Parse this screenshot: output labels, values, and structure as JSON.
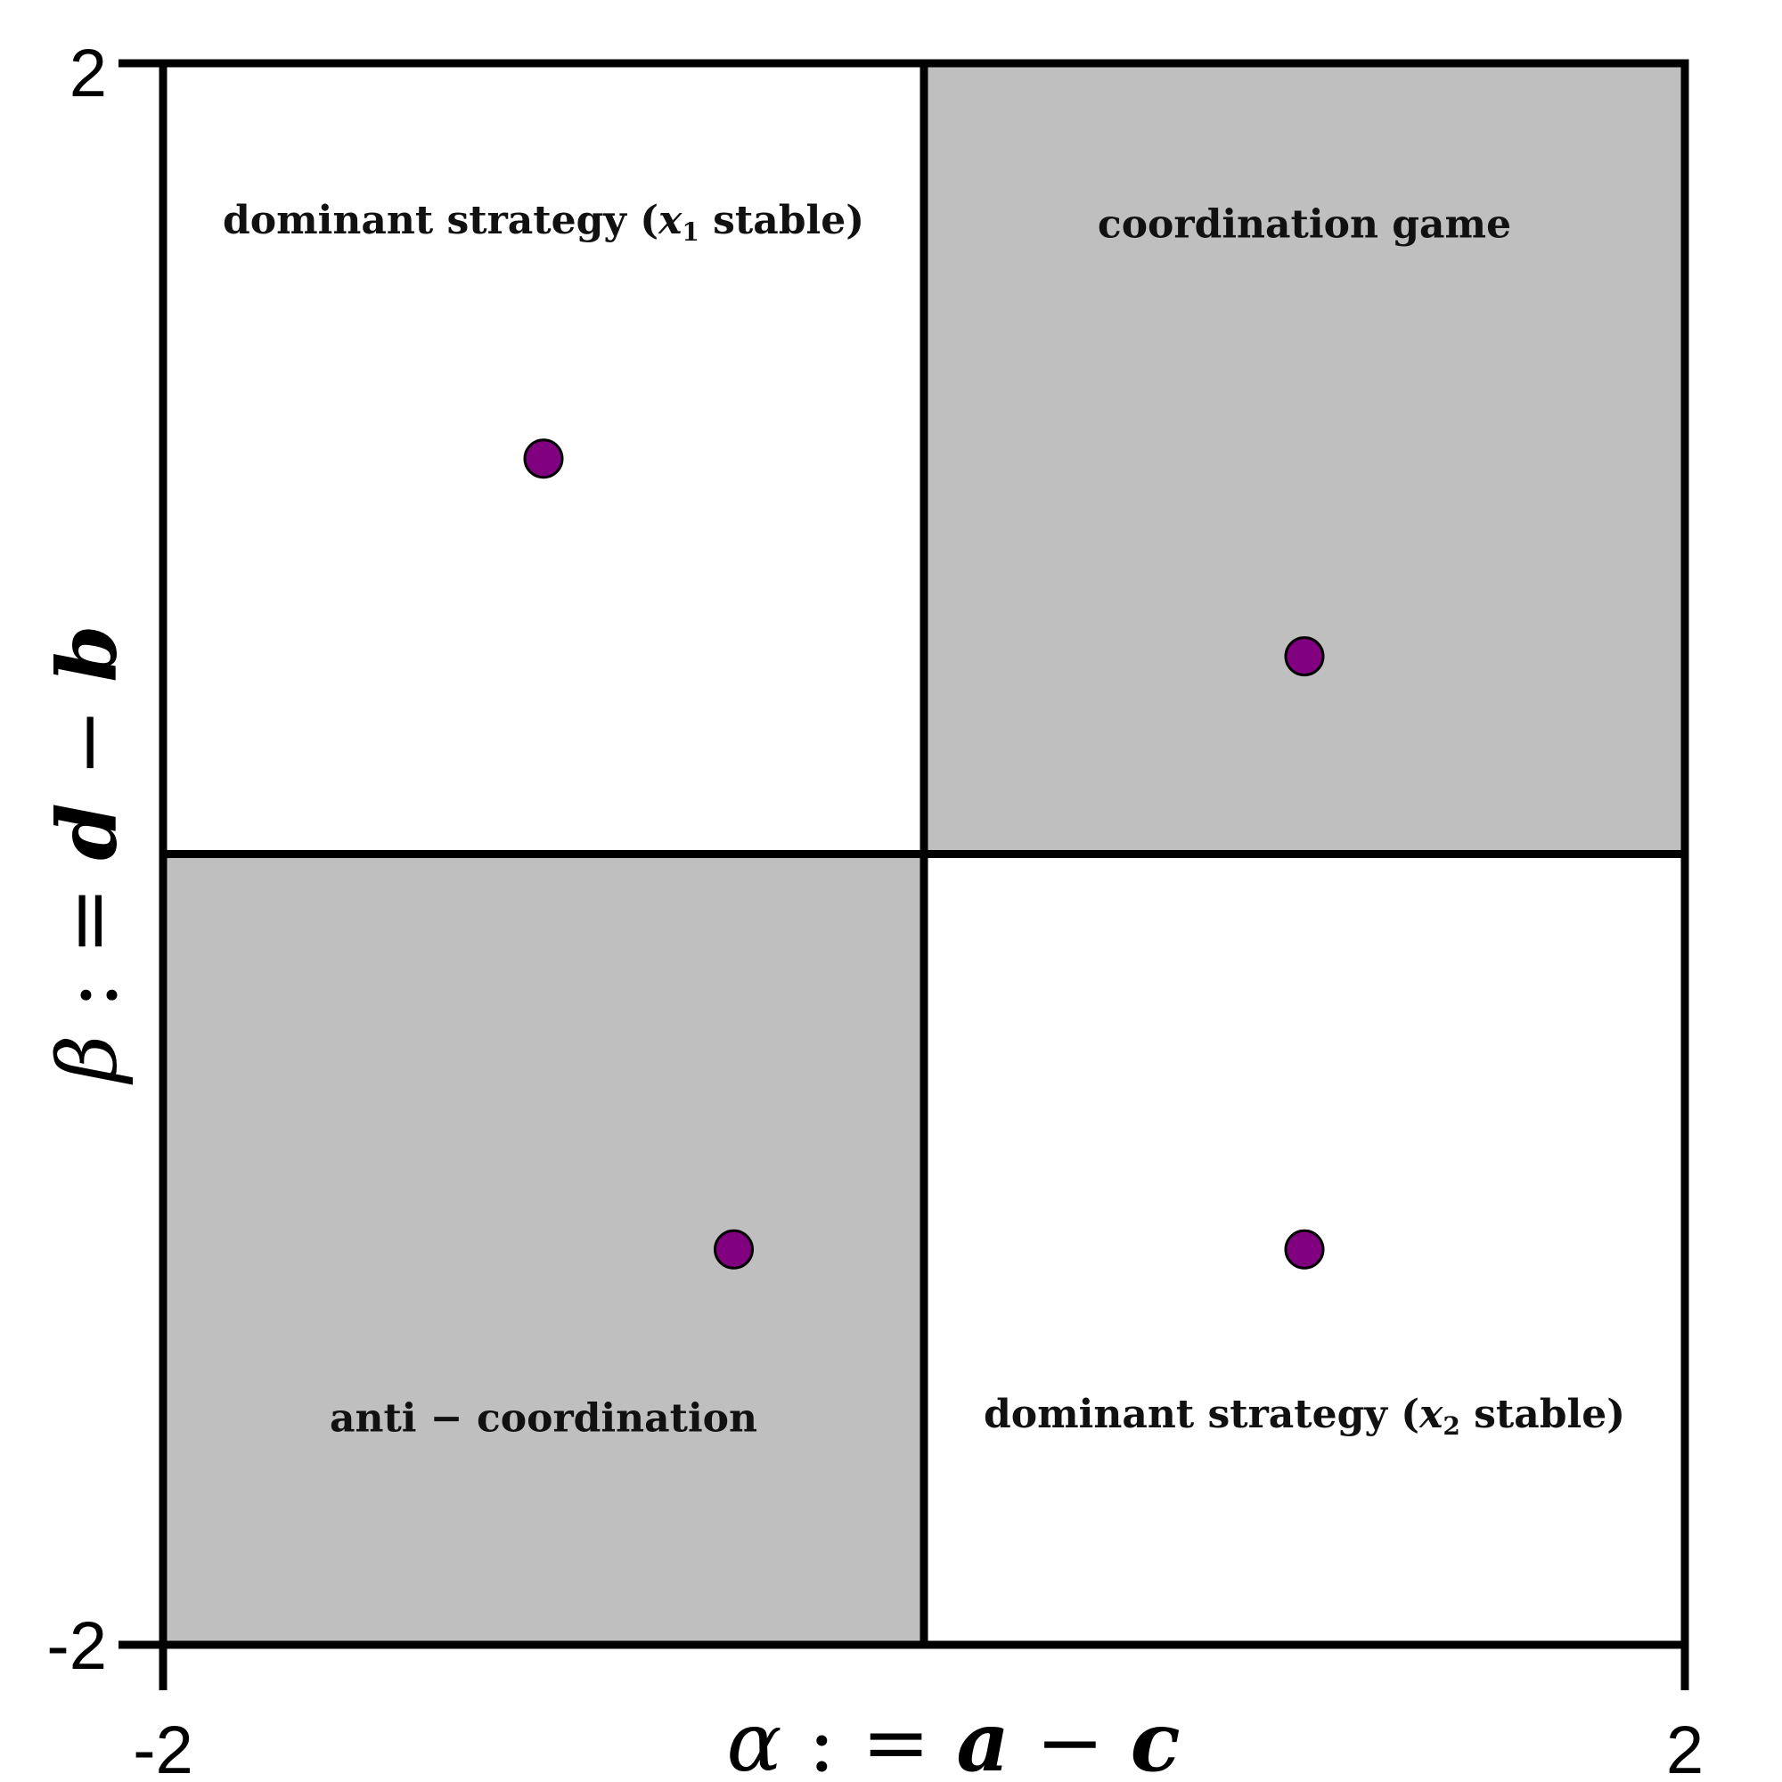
{
  "chart_data": {
    "type": "scatter",
    "xlim": [
      -2,
      2
    ],
    "ylim": [
      -2,
      2
    ],
    "xticks": [
      "-2",
      "2"
    ],
    "yticks": [
      "-2",
      "2"
    ],
    "xlabel": {
      "sym": "α",
      "op": " : = ",
      "v1": "a",
      "minus": " − ",
      "v2": "c"
    },
    "ylabel": {
      "sym": "β",
      "op": " : = ",
      "v1": "d",
      "minus": " − ",
      "v2": "b"
    },
    "regions": [
      {
        "quadrant": "top-left",
        "label_pre": "dominant strategy (",
        "label_var": "x",
        "label_sub": "1",
        "label_post": " stable)",
        "label_x": -1,
        "label_y": 1.57,
        "fill": "#ffffff"
      },
      {
        "quadrant": "top-right",
        "label_pre": "coordination game",
        "label_var": "",
        "label_sub": "",
        "label_post": "",
        "label_x": 1,
        "label_y": 1.56,
        "fill": "#bfbfbf"
      },
      {
        "quadrant": "bottom-left",
        "label_pre": "anti − coordination",
        "label_var": "",
        "label_sub": "",
        "label_post": "",
        "label_x": -1,
        "label_y": -1.46,
        "fill": "#bfbfbf"
      },
      {
        "quadrant": "bottom-right",
        "label_pre": "dominant strategy (",
        "label_var": "x",
        "label_sub": "2",
        "label_post": " stable)",
        "label_x": 1,
        "label_y": -1.45,
        "fill": "#ffffff"
      }
    ],
    "points": [
      {
        "x": -1,
        "y": 1.0
      },
      {
        "x": 1,
        "y": 0.5
      },
      {
        "x": -0.5,
        "y": -1.0
      },
      {
        "x": 1,
        "y": -1.0
      }
    ],
    "point_color": "#800080",
    "grid": false
  }
}
